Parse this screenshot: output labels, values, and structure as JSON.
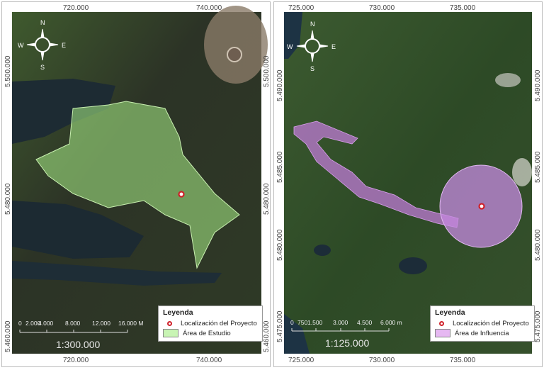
{
  "left_map": {
    "x_ticks": [
      "720.000",
      "740.000"
    ],
    "y_ticks": [
      "5.500.000",
      "5.480.000",
      "5.460.000"
    ],
    "compass": {
      "n": "N",
      "s": "S",
      "e": "E",
      "w": "W"
    },
    "scale_labels": [
      "0",
      "2.000",
      "4.000",
      "8.000",
      "12.000",
      "16.000 M"
    ],
    "scale_ratio": "1:300.000",
    "legend": {
      "title": "Leyenda",
      "items": [
        {
          "label": "Localización del Proyecto",
          "symbol": "red-circle-marker",
          "color": "#d0202a"
        },
        {
          "label": "Área de Estudio",
          "symbol": "polygon",
          "color": "#b8f0a0"
        }
      ]
    }
  },
  "right_map": {
    "x_ticks": [
      "725.000",
      "730.000",
      "735.000"
    ],
    "y_ticks": [
      "5.490.000",
      "5.485.000",
      "5.480.000",
      "5.475.000"
    ],
    "compass": {
      "n": "N",
      "s": "S",
      "e": "E",
      "w": "W"
    },
    "scale_labels": [
      "0",
      "750",
      "1.500",
      "3.000",
      "4.500",
      "6.000 m"
    ],
    "scale_ratio": "1:125.000",
    "legend": {
      "title": "Leyenda",
      "items": [
        {
          "label": "Localización del Proyecto",
          "symbol": "red-circle-marker",
          "color": "#d0202a"
        },
        {
          "label": "Área de Influencia",
          "symbol": "polygon",
          "color": "#e6b0f0"
        }
      ]
    }
  }
}
